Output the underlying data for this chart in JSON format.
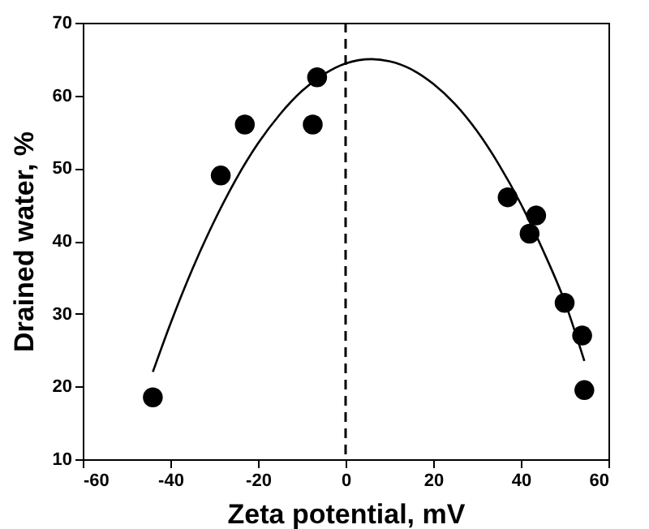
{
  "chart_data": {
    "type": "scatter",
    "xlabel": "Zeta potential, mV",
    "ylabel": "Drained water, %",
    "xlim": [
      -60,
      60
    ],
    "xticks": [
      -60,
      -40,
      -20,
      0,
      20,
      40,
      60
    ],
    "ylim": [
      10,
      70
    ],
    "yticks": [
      10,
      20,
      30,
      40,
      50,
      60,
      70
    ],
    "grid": false,
    "series": [
      {
        "marker": "circle",
        "color": "#000000",
        "x": [
          -44,
          -28.5,
          -23,
          -7.5,
          -6.5,
          37,
          42,
          43.5,
          50,
          54,
          54.5
        ],
        "values": [
          18.5,
          49,
          56,
          56,
          62.5,
          46,
          41,
          43.5,
          31.5,
          27,
          19.5
        ]
      },
      {
        "type": "line",
        "color": "#000000",
        "x": [
          -44,
          -40,
          -35,
          -30,
          -25,
          -20,
          -15,
          -10,
          -5,
          0,
          6,
          10,
          15,
          20,
          25,
          30,
          35,
          40,
          45,
          50,
          54.5
        ],
        "values": [
          22,
          28.6,
          36.1,
          42.7,
          48.5,
          53.4,
          57.4,
          60.6,
          62.9,
          64.4,
          65,
          64.7,
          63.6,
          61.6,
          58.8,
          55.1,
          50.5,
          45.1,
          38.8,
          31.7,
          23.5
        ]
      }
    ],
    "ref_lines": [
      {
        "axis": "x",
        "value": 0,
        "line_style": "dashed",
        "color": "#000000"
      }
    ]
  }
}
